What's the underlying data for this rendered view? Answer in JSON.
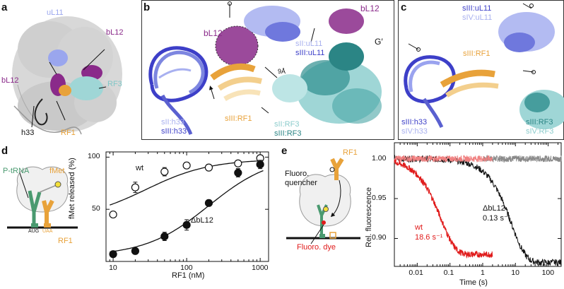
{
  "panels": {
    "a": {
      "letter": "a",
      "labels": [
        "uL11",
        "bL12",
        "bL12",
        "RF3",
        "h33",
        "RF1"
      ],
      "colors": {
        "uL11": "#9aa6ee",
        "bL12": "#8a2a8a",
        "RF3": "#9fd6d6",
        "RF1": "#e8a23a",
        "h33": "#111111"
      }
    },
    "b": {
      "letter": "b",
      "labels": {
        "bL12_left": "bL12",
        "bL12_right": "bL12",
        "G_prime": "G′",
        "sII_uL11": "sII:uL11",
        "sIII_uL11": "sIII:uL11",
        "dist": "9Å",
        "sII_h33": "sII:h33",
        "sIII_h33": "sIII:h33",
        "sIII_RF1": "sIII:RF1",
        "sII_RF3": "sII:RF3",
        "sIII_RF3": "sIII:RF3"
      }
    },
    "c": {
      "letter": "c",
      "labels": {
        "sIII_uL11": "sIII:uL11",
        "sIV_uL11": "sIV:uL11",
        "sIII_RF1": "sIII:RF1",
        "sIII_h33": "sIII:h33",
        "sIV_h33": "sIV:h33",
        "sIII_RF3": "sIII:RF3",
        "sIV_RF3": "sIV:RF3"
      }
    },
    "d": {
      "letter": "d",
      "schematic": {
        "trna": "P-tRNA",
        "fmet": "fMet",
        "rf1": "RF1",
        "aug": "AUG",
        "uaa": "UAA"
      }
    },
    "e": {
      "letter": "e",
      "schematic": {
        "rf1": "RF1",
        "quencher": "Fluoro. quencher",
        "dye": "Fluoro. dye"
      }
    }
  },
  "chart_data": [
    {
      "type": "scatter",
      "panel": "d",
      "xlabel": "RF1 (nM)",
      "ylabel": "fMet released (%)",
      "xscale": "log",
      "xlim": [
        8,
        1300
      ],
      "ylim": [
        0,
        105
      ],
      "xticks": [
        10,
        100,
        1000
      ],
      "xtick_labels": [
        "10",
        "100",
        "1000"
      ],
      "yticks": [
        50,
        100
      ],
      "ytick_labels": [
        "50",
        "100"
      ],
      "series": [
        {
          "name": "wt",
          "marker": "open-circle",
          "x": [
            10,
            20,
            50,
            100,
            200,
            500,
            1000
          ],
          "y": [
            45,
            71,
            86,
            92,
            90,
            94,
            99
          ],
          "err": [
            0,
            5,
            4,
            3,
            3,
            2,
            2
          ],
          "fit": {
            "type": "hyperbolic",
            "base": 40,
            "amp": 58,
            "k": 28
          }
        },
        {
          "name": "ΔbL12",
          "marker": "filled-circle",
          "x": [
            10,
            20,
            50,
            100,
            200,
            500,
            1000
          ],
          "y": [
            7,
            10,
            24,
            35,
            56,
            85,
            93
          ],
          "err": [
            0,
            0,
            4,
            5,
            3,
            4,
            4
          ],
          "fit": {
            "type": "hyperbolic",
            "base": 5,
            "amp": 97,
            "k": 200
          }
        }
      ]
    },
    {
      "type": "line",
      "panel": "e",
      "xlabel": "Time (s)",
      "ylabel": "Rel. fluorescence",
      "xscale": "log",
      "xlim": [
        0.002,
        250
      ],
      "ylim": [
        0.865,
        1.02
      ],
      "xticks": [
        0.01,
        0.1,
        1,
        10,
        100
      ],
      "xtick_labels": [
        "0.01",
        "0.1",
        "1",
        "10",
        "100"
      ],
      "yticks": [
        0.9,
        0.95,
        1.0
      ],
      "ytick_labels": [
        "0.90",
        "0.95",
        "1.00"
      ],
      "series": [
        {
          "name": "wt",
          "rate_label": "18.6 s⁻¹",
          "color": "#e01b1b",
          "model": {
            "amp": 0.12,
            "k": 18.6,
            "t_start": 0.002,
            "t_end": 2,
            "noise": 0.004
          }
        },
        {
          "name": "ΔbL12",
          "rate_label": "0.13 s⁻¹",
          "color": "#111111",
          "model": {
            "amp": 0.13,
            "k": 0.13,
            "t_start": 0.002,
            "t_end": 250,
            "noise": 0.004
          }
        },
        {
          "name": "",
          "color": "#8a8a8a",
          "model": {
            "amp": 0.0,
            "k": 1,
            "t_start": 1,
            "t_end": 250,
            "noise": 0.004
          }
        },
        {
          "name": "",
          "color": "#f08080",
          "model": {
            "amp": 0.0,
            "k": 1,
            "t_start": 0.002,
            "t_end": 2,
            "noise": 0.004
          }
        }
      ]
    }
  ]
}
